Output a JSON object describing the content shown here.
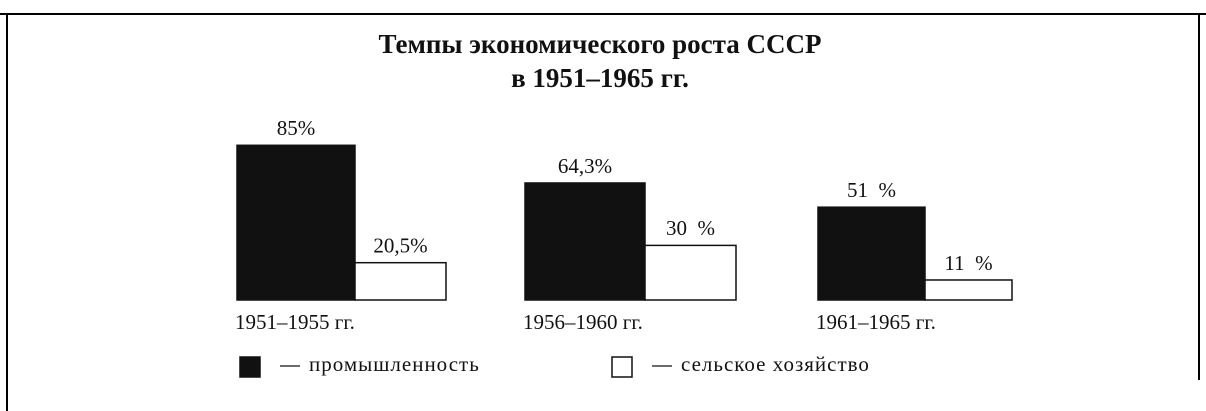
{
  "chart_data": {
    "type": "bar",
    "title": "Темпы экономического роста СССР",
    "subtitle": "в 1951–1965 гг.",
    "categories": [
      "1951–1955 гг.",
      "1956–1960 гг.",
      "1961–1965 гг."
    ],
    "series": [
      {
        "name": "промышленность",
        "color": "#111111",
        "values": [
          85,
          64.3,
          51
        ],
        "value_labels": [
          "85%",
          "64,3%",
          "51  %"
        ]
      },
      {
        "name": "сельское хозяйство",
        "color": "#ffffff",
        "values": [
          20.5,
          30,
          11
        ],
        "value_labels": [
          "20,5%",
          "30  %",
          "11  %"
        ]
      }
    ]
  }
}
